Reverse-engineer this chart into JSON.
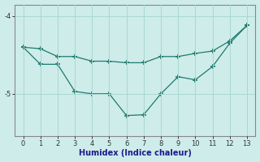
{
  "xlabel": "Humidex (Indice chaleur)",
  "x": [
    0,
    1,
    2,
    3,
    4,
    5,
    6,
    7,
    8,
    9,
    10,
    11,
    12,
    13
  ],
  "line1_y": [
    -4.4,
    -4.42,
    -4.52,
    -4.52,
    -4.58,
    -4.58,
    -4.6,
    -4.6,
    -4.52,
    -4.52,
    -4.48,
    -4.45,
    -4.32,
    -4.12
  ],
  "line2_y": [
    -4.4,
    -4.62,
    -4.62,
    -4.97,
    -5.0,
    -5.0,
    -5.28,
    -5.27,
    -5.0,
    -4.78,
    -4.82,
    -4.65,
    -4.35,
    -4.12
  ],
  "line_color": "#1f7a6e",
  "bg_color": "#ceecea",
  "grid_color": "#a8d8d4",
  "ylim": [
    -5.55,
    -3.85
  ],
  "xlim": [
    -0.5,
    13.5
  ],
  "yticks": [
    -5,
    -4
  ],
  "ytick_labels": [
    "-5",
    "-4"
  ],
  "xticks": [
    0,
    1,
    2,
    3,
    4,
    5,
    6,
    7,
    8,
    9,
    10,
    11,
    12,
    13
  ],
  "marker": "+",
  "markersize": 4,
  "linewidth": 0.9,
  "tick_fontsize": 6,
  "xlabel_fontsize": 7
}
